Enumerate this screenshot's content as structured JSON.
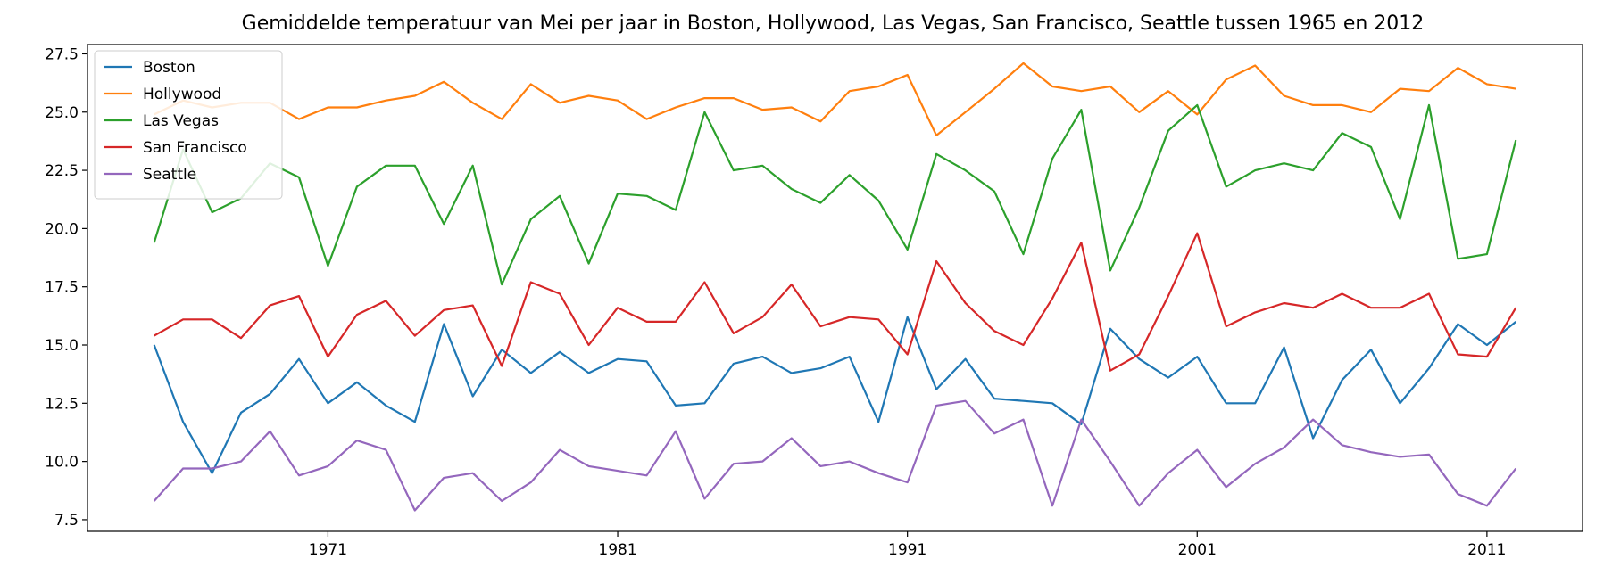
{
  "chart_data": {
    "type": "line",
    "title": "Gemiddelde temperatuur van Mei per jaar in Boston, Hollywood, Las Vegas, San Francisco, Seattle tussen 1965 en 2012",
    "xlabel": "",
    "ylabel": "",
    "x": [
      1965,
      1966,
      1967,
      1968,
      1969,
      1970,
      1971,
      1972,
      1973,
      1974,
      1975,
      1976,
      1977,
      1978,
      1979,
      1980,
      1981,
      1982,
      1983,
      1984,
      1985,
      1986,
      1987,
      1988,
      1989,
      1990,
      1991,
      1992,
      1993,
      1994,
      1995,
      1996,
      1997,
      1998,
      1999,
      2000,
      2001,
      2002,
      2003,
      2004,
      2005,
      2006,
      2007,
      2008,
      2009,
      2010,
      2011,
      2012
    ],
    "xlim": [
      1962.7,
      2014.3
    ],
    "ylim": [
      7.0,
      27.9
    ],
    "xticks": [
      1971,
      1981,
      1991,
      2001,
      2011
    ],
    "xtick_labels": [
      "1971",
      "1981",
      "1991",
      "2001",
      "2011"
    ],
    "yticks": [
      7.5,
      10.0,
      12.5,
      15.0,
      17.5,
      20.0,
      22.5,
      25.0,
      27.5
    ],
    "ytick_labels": [
      "7.5",
      "10.0",
      "12.5",
      "15.0",
      "17.5",
      "20.0",
      "22.5",
      "25.0",
      "27.5"
    ],
    "grid": false,
    "legend": "upper-left",
    "series": [
      {
        "name": "Boston",
        "color": "#1f77b4",
        "values": [
          15.0,
          11.7,
          9.5,
          12.1,
          12.9,
          14.4,
          12.5,
          13.4,
          12.4,
          11.7,
          15.9,
          12.8,
          14.8,
          13.8,
          14.7,
          13.8,
          14.4,
          14.3,
          12.4,
          12.5,
          14.2,
          14.5,
          13.8,
          14.0,
          14.5,
          11.7,
          16.2,
          13.1,
          14.4,
          12.7,
          12.6,
          12.5,
          11.6,
          15.7,
          14.4,
          13.6,
          14.5,
          12.5,
          12.5,
          14.9,
          11.0,
          13.5,
          14.8,
          12.5,
          14.0,
          15.9,
          15.0,
          16.0
        ]
      },
      {
        "name": "Hollywood",
        "color": "#ff7f0e",
        "values": [
          24.9,
          25.5,
          25.2,
          25.4,
          25.4,
          24.7,
          25.2,
          25.2,
          25.5,
          25.7,
          26.3,
          25.4,
          24.7,
          26.2,
          25.4,
          25.7,
          25.5,
          24.7,
          25.2,
          25.6,
          25.6,
          25.1,
          25.2,
          24.6,
          25.9,
          26.1,
          26.6,
          24.0,
          25.0,
          26.0,
          27.1,
          26.1,
          25.9,
          26.1,
          25.0,
          25.9,
          24.9,
          26.4,
          27.0,
          25.7,
          25.3,
          25.3,
          25.0,
          26.0,
          25.9,
          26.9,
          26.2,
          26.0
        ]
      },
      {
        "name": "Las Vegas",
        "color": "#2ca02c",
        "values": [
          19.4,
          23.4,
          20.7,
          21.3,
          22.8,
          22.2,
          18.4,
          21.8,
          22.7,
          22.7,
          20.2,
          22.7,
          17.6,
          20.4,
          21.4,
          18.5,
          21.5,
          21.4,
          20.8,
          25.0,
          22.5,
          22.7,
          21.7,
          21.1,
          22.3,
          21.2,
          19.1,
          23.2,
          22.5,
          21.6,
          18.9,
          23.0,
          25.1,
          18.2,
          20.9,
          24.2,
          25.3,
          21.8,
          22.5,
          22.8,
          22.5,
          24.1,
          23.5,
          20.4,
          25.3,
          18.7,
          18.9,
          23.8
        ]
      },
      {
        "name": "San Francisco",
        "color": "#d62728",
        "values": [
          15.4,
          16.1,
          16.1,
          15.3,
          16.7,
          17.1,
          14.5,
          16.3,
          16.9,
          15.4,
          16.5,
          16.7,
          14.1,
          17.7,
          17.2,
          15.0,
          16.6,
          16.0,
          16.0,
          17.7,
          15.5,
          16.2,
          17.6,
          15.8,
          16.2,
          16.1,
          14.6,
          18.6,
          16.8,
          15.6,
          15.0,
          17.0,
          19.4,
          13.9,
          14.6,
          17.1,
          19.8,
          15.8,
          16.4,
          16.8,
          16.6,
          17.2,
          16.6,
          16.6,
          17.2,
          14.6,
          14.5,
          16.6
        ]
      },
      {
        "name": "Seattle",
        "color": "#9467bd",
        "values": [
          8.3,
          9.7,
          9.7,
          10.0,
          11.3,
          9.4,
          9.8,
          10.9,
          10.5,
          7.9,
          9.3,
          9.5,
          8.3,
          9.1,
          10.5,
          9.8,
          9.6,
          9.4,
          11.3,
          8.4,
          9.9,
          10.0,
          11.0,
          9.8,
          10.0,
          9.5,
          9.1,
          12.4,
          12.6,
          11.2,
          11.8,
          8.1,
          11.8,
          10.0,
          8.1,
          9.5,
          10.5,
          8.9,
          9.9,
          10.6,
          11.8,
          10.7,
          10.4,
          10.2,
          10.3,
          8.6,
          8.1,
          9.7
        ]
      }
    ]
  }
}
